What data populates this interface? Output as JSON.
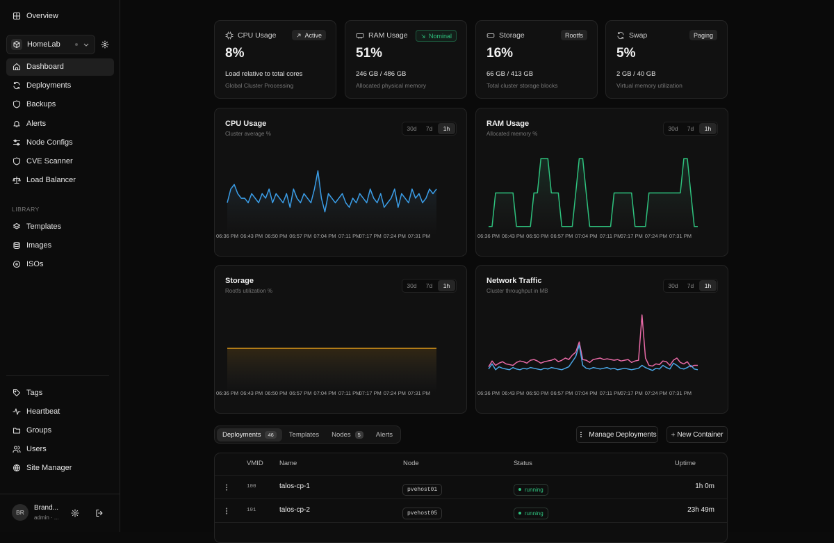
{
  "sidebar": {
    "overview": "Overview",
    "workspace": "HomeLab",
    "nav": [
      "Dashboard",
      "Deployments",
      "Backups",
      "Alerts",
      "Node Configs",
      "CVE Scanner",
      "Load Balancer"
    ],
    "library_label": "LIBRARY",
    "library": [
      "Templates",
      "Images",
      "ISOs"
    ],
    "footer_nav": [
      "Tags",
      "Heartbeat",
      "Groups",
      "Users",
      "Site Manager"
    ],
    "user": {
      "initials": "BR",
      "name": "Brand...",
      "role": "admin · ..."
    }
  },
  "stat_cards": [
    {
      "title": "CPU Usage",
      "badge": "Active",
      "value": "8%",
      "detail": "Load relative to total cores",
      "description": "Global Cluster Processing"
    },
    {
      "title": "RAM Usage",
      "badge": "Nominal",
      "badge_color": "#2ec27e",
      "value": "51%",
      "detail": "246 GB / 486 GB",
      "description": "Allocated physical memory"
    },
    {
      "title": "Storage",
      "badge": "Rootfs",
      "value": "16%",
      "detail": "66 GB / 413 GB",
      "description": "Total cluster storage blocks"
    },
    {
      "title": "Swap",
      "badge": "Paging",
      "value": "5%",
      "detail": "2 GB / 40 GB",
      "description": "Virtual memory utilization"
    }
  ],
  "chart_data": [
    {
      "type": "line",
      "title": "CPU Usage",
      "subtitle": "Cluster average %",
      "ranges": [
        "30d",
        "7d",
        "1h"
      ],
      "active_range": 2,
      "categories": [
        "06:36 PM",
        null,
        null,
        null,
        null,
        null,
        null,
        "06:43 PM",
        null,
        null,
        null,
        null,
        null,
        null,
        "06:50 PM",
        null,
        null,
        null,
        null,
        null,
        null,
        "06:57 PM",
        null,
        null,
        null,
        null,
        null,
        null,
        "07:04 PM",
        null,
        null,
        null,
        null,
        null,
        null,
        "07:11 PM",
        null,
        null,
        null,
        null,
        null,
        "07:17 PM",
        null,
        null,
        null,
        null,
        null,
        null,
        "07:24 PM",
        null,
        null,
        null,
        null,
        null,
        null,
        "07:31 PM",
        null,
        null,
        null,
        null,
        null
      ],
      "values": [
        6,
        9,
        10,
        8,
        7,
        7,
        6,
        8,
        7,
        6,
        8,
        7,
        9,
        6,
        8,
        7,
        6,
        8,
        5,
        9,
        7,
        6,
        8,
        7,
        6,
        9,
        13,
        7,
        4,
        8,
        7,
        6,
        7,
        8,
        6,
        5,
        7,
        6,
        8,
        7,
        6,
        9,
        7,
        6,
        8,
        5,
        6,
        7,
        9,
        5,
        8,
        7,
        6,
        9,
        7,
        8,
        6,
        7,
        9,
        8,
        9
      ],
      "color": "#3b9ee8",
      "area": true,
      "ylim": [
        0,
        16
      ]
    },
    {
      "type": "line",
      "title": "RAM Usage",
      "subtitle": "Allocated memory %",
      "ranges": [
        "30d",
        "7d",
        "1h"
      ],
      "active_range": 2,
      "categories": [
        "06:36 PM",
        null,
        null,
        null,
        null,
        null,
        null,
        "06:43 PM",
        null,
        null,
        null,
        null,
        null,
        null,
        "06:50 PM",
        null,
        null,
        null,
        null,
        null,
        null,
        "06:57 PM",
        null,
        null,
        null,
        null,
        null,
        null,
        "07:04 PM",
        null,
        null,
        null,
        null,
        null,
        null,
        "07:11 PM",
        null,
        null,
        null,
        null,
        null,
        "07:17 PM",
        null,
        null,
        null,
        null,
        null,
        null,
        "07:24 PM",
        null,
        null,
        null,
        null,
        null,
        null,
        "07:31 PM",
        null,
        null,
        null,
        null,
        null
      ],
      "values": [
        5,
        5,
        51,
        51,
        51,
        51,
        51,
        51,
        5,
        5,
        5,
        5,
        5,
        51,
        51,
        98,
        98,
        98,
        51,
        51,
        51,
        5,
        5,
        5,
        5,
        51,
        98,
        98,
        51,
        5,
        5,
        5,
        5,
        5,
        5,
        5,
        51,
        51,
        51,
        51,
        51,
        51,
        5,
        5,
        5,
        5,
        51,
        51,
        51,
        51,
        51,
        51,
        51,
        51,
        51,
        51,
        98,
        98,
        51,
        5,
        5
      ],
      "color": "#2ec27e",
      "area": true,
      "ylim": [
        0,
        100
      ]
    },
    {
      "type": "line",
      "title": "Storage",
      "subtitle": "Rootfs utilization %",
      "ranges": [
        "30d",
        "7d",
        "1h"
      ],
      "active_range": 2,
      "categories": [
        "06:36 PM",
        null,
        null,
        null,
        null,
        null,
        null,
        "06:43 PM",
        null,
        null,
        null,
        null,
        null,
        null,
        "06:50 PM",
        null,
        null,
        null,
        null,
        null,
        null,
        "06:57 PM",
        null,
        null,
        null,
        null,
        null,
        null,
        "07:04 PM",
        null,
        null,
        null,
        null,
        null,
        null,
        "07:11 PM",
        null,
        null,
        null,
        null,
        null,
        "07:17 PM",
        null,
        null,
        null,
        null,
        null,
        null,
        "07:24 PM",
        null,
        null,
        null,
        null,
        null,
        null,
        "07:31 PM",
        null,
        null,
        null,
        null,
        null
      ],
      "values": [
        16,
        16,
        16,
        16,
        16,
        16,
        16,
        16,
        16,
        16,
        16,
        16,
        16,
        16,
        16,
        16,
        16,
        16,
        16,
        16,
        16,
        16,
        16,
        16,
        16,
        16,
        16,
        16,
        16,
        16,
        16,
        16,
        16,
        16,
        16,
        16,
        16,
        16,
        16,
        16,
        16,
        16,
        16,
        16,
        16,
        16,
        16,
        16,
        16,
        16,
        16,
        16,
        16,
        16,
        16,
        16,
        16,
        16,
        16,
        16,
        16
      ],
      "color": "#e09b1a",
      "area": true,
      "ylim": [
        0,
        30
      ]
    },
    {
      "type": "line",
      "title": "Network Traffic",
      "subtitle": "Cluster throughput in MB",
      "ranges": [
        "30d",
        "7d",
        "1h"
      ],
      "active_range": 2,
      "categories": [
        "06:36 PM",
        null,
        null,
        null,
        null,
        null,
        null,
        "06:43 PM",
        null,
        null,
        null,
        null,
        null,
        null,
        "06:50 PM",
        null,
        null,
        null,
        null,
        null,
        null,
        "06:57 PM",
        null,
        null,
        null,
        null,
        null,
        null,
        "07:04 PM",
        null,
        null,
        null,
        null,
        null,
        null,
        "07:11 PM",
        null,
        null,
        null,
        null,
        null,
        "07:17 PM",
        null,
        null,
        null,
        null,
        null,
        null,
        "07:24 PM",
        null,
        null,
        null,
        null,
        null,
        null,
        "07:31 PM",
        null,
        null,
        null,
        null,
        null
      ],
      "series": [
        {
          "color": "#e86aa6",
          "values": [
            28,
            36,
            30,
            33,
            35,
            32,
            31,
            30,
            34,
            36,
            35,
            33,
            37,
            38,
            36,
            33,
            35,
            36,
            37,
            39,
            35,
            37,
            40,
            38,
            44,
            48,
            62,
            38,
            37,
            34,
            38,
            39,
            40,
            38,
            39,
            38,
            37,
            38,
            36,
            37,
            38,
            34,
            36,
            37,
            99,
            40,
            30,
            29,
            32,
            31,
            36,
            35,
            30,
            37,
            40,
            34,
            32,
            35,
            28,
            30,
            30
          ]
        },
        {
          "color": "#4aa8e8",
          "values": [
            25,
            32,
            24,
            28,
            26,
            25,
            24,
            27,
            25,
            24,
            26,
            25,
            27,
            26,
            25,
            24,
            26,
            25,
            27,
            26,
            25,
            24,
            26,
            28,
            35,
            42,
            58,
            30,
            26,
            25,
            27,
            26,
            25,
            26,
            27,
            25,
            26,
            24,
            25,
            26,
            25,
            24,
            25,
            26,
            30,
            27,
            25,
            23,
            26,
            25,
            30,
            27,
            25,
            33,
            30,
            26,
            25,
            27,
            30,
            25,
            24
          ]
        }
      ],
      "area": false,
      "ylim": [
        0,
        100
      ]
    }
  ],
  "tabs": [
    {
      "label": "Deployments",
      "count": "46"
    },
    {
      "label": "Templates"
    },
    {
      "label": "Nodes",
      "count": "5"
    },
    {
      "label": "Alerts"
    }
  ],
  "actions": {
    "manage": "Manage Deployments",
    "create": "New Container"
  },
  "table": {
    "columns": [
      "VMID",
      "Name",
      "Node",
      "Status",
      "Uptime"
    ],
    "rows": [
      [
        "100",
        "talos-cp-1",
        "pvehost01",
        "running",
        "1h 0m"
      ],
      [
        "101",
        "talos-cp-2",
        "pvehost05",
        "running",
        "23h 49m"
      ]
    ]
  }
}
